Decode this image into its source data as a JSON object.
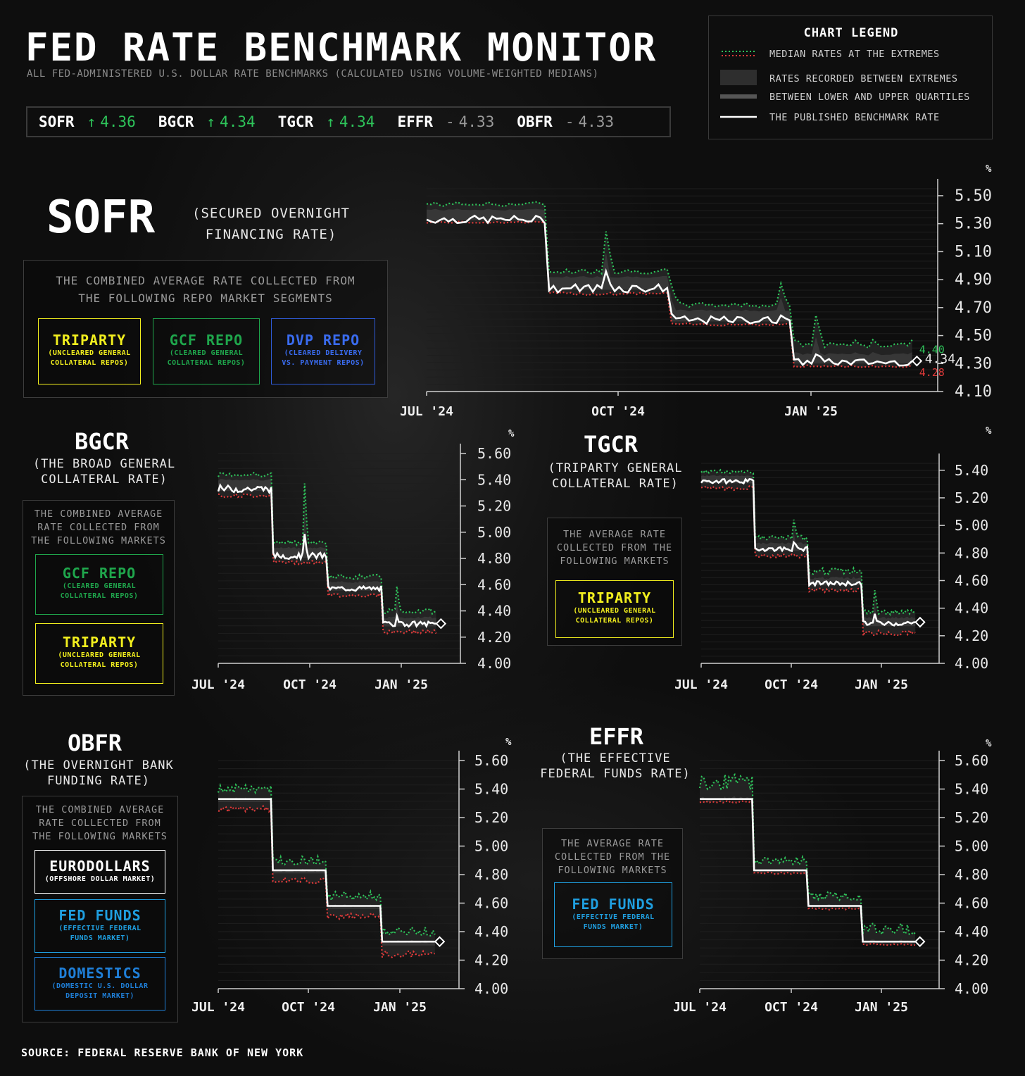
{
  "header": {
    "title": "FED RATE BENCHMARK MONITOR",
    "subtitle": "ALL FED-ADMINISTERED U.S. DOLLAR RATE BENCHMARKS (CALCULATED USING VOLUME-WEIGHTED MEDIANS)"
  },
  "ticker": [
    {
      "name": "SOFR",
      "arrow": "↑",
      "value": "4.36",
      "dir": "up"
    },
    {
      "name": "BGCR",
      "arrow": "↑",
      "value": "4.34",
      "dir": "up"
    },
    {
      "name": "TGCR",
      "arrow": "↑",
      "value": "4.34",
      "dir": "up"
    },
    {
      "name": "EFFR",
      "arrow": "-",
      "value": "4.33",
      "dir": "flat"
    },
    {
      "name": "OBFR",
      "arrow": "-",
      "value": "4.33",
      "dir": "flat"
    }
  ],
  "legend": {
    "title": "CHART LEGEND",
    "items": [
      "MEDIAN RATES AT THE EXTREMES",
      "RATES RECORDED BETWEEN EXTREMES",
      "BETWEEN LOWER AND UPPER QUARTILES",
      "THE PUBLISHED BENCHMARK RATE"
    ]
  },
  "colors": {
    "green": "#2ec45a",
    "red": "#e03a3a",
    "white": "#ffffff",
    "triparty": "#f2ef1e",
    "gcf": "#1fa64c",
    "dvp": "#2f5bd8",
    "fedfunds": "#1f9fe0",
    "domestics": "#1f7fd8"
  },
  "sections": {
    "sofr": {
      "name": "SOFR",
      "full": [
        "(SECURED OVERNIGHT",
        "FINANCING RATE)"
      ],
      "desc": [
        "THE COMBINED AVERAGE RATE COLLECTED FROM",
        "THE FOLLOWING REPO MARKET SEGMENTS"
      ],
      "tags": [
        {
          "name": "TRIPARTY",
          "sub": [
            "(UNCLEARED GENERAL",
            "COLLATERAL REPOS)"
          ]
        },
        {
          "name": "GCF REPO",
          "sub": [
            "(CLEARED GENERAL",
            "COLLATERAL REPOS)"
          ]
        },
        {
          "name": "DVP REPO",
          "sub": [
            "(CLEARED DELIVERY",
            "VS. PAYMENT REPOS)"
          ]
        }
      ]
    },
    "bgcr": {
      "name": "BGCR",
      "full": [
        "(THE BROAD GENERAL",
        "COLLATERAL RATE)"
      ],
      "desc": [
        "THE COMBINED AVERAGE",
        "RATE COLLECTED FROM",
        "THE FOLLOWING MARKETS"
      ],
      "tags": [
        {
          "name": "GCF REPO",
          "sub": [
            "(CLEARED GENERAL",
            "COLLATERAL REPOS)"
          ]
        },
        {
          "name": "TRIPARTY",
          "sub": [
            "(UNCLEARED GENERAL",
            "COLLATERAL REPOS)"
          ]
        }
      ]
    },
    "tgcr": {
      "name": "TGCR",
      "full": [
        "(TRIPARTY GENERAL",
        "COLLATERAL RATE)"
      ],
      "desc": [
        "THE AVERAGE RATE",
        "COLLECTED FROM THE",
        "FOLLOWING MARKETS"
      ],
      "tags": [
        {
          "name": "TRIPARTY",
          "sub": [
            "(UNCLEARED GENERAL",
            "COLLATERAL REPOS)"
          ]
        }
      ]
    },
    "obfr": {
      "name": "OBFR",
      "full": [
        "(THE OVERNIGHT BANK",
        "FUNDING RATE)"
      ],
      "desc": [
        "THE COMBINED AVERAGE",
        "RATE COLLECTED FROM",
        "THE FOLLOWING MARKETS"
      ],
      "tags": [
        {
          "name": "EURODOLLARS",
          "sub": [
            "(OFFSHORE DOLLAR MARKET)"
          ]
        },
        {
          "name": "FED FUNDS",
          "sub": [
            "(EFFECTIVE FEDERAL",
            "FUNDS MARKET)"
          ]
        },
        {
          "name": "DOMESTICS",
          "sub": [
            "(DOMESTIC U.S. DOLLAR",
            "DEPOSIT MARKET)"
          ]
        }
      ]
    },
    "effr": {
      "name": "EFFR",
      "full": [
        "(THE EFFECTIVE",
        "FEDERAL FUNDS RATE)"
      ],
      "desc": [
        "THE AVERAGE RATE",
        "COLLECTED FROM THE",
        "FOLLOWING MARKETS"
      ],
      "tags": [
        {
          "name": "FED FUNDS",
          "sub": [
            "(EFFECTIVE FEDERAL",
            "FUNDS MARKET)"
          ]
        }
      ]
    }
  },
  "source": "SOURCE: FEDERAL RESERVE BANK OF NEW YORK",
  "chart_data": [
    {
      "id": "sofr",
      "type": "line",
      "unit": "%",
      "xlabels": [
        "JUL '24",
        "OCT '24",
        "JAN '25"
      ],
      "yticks": [
        "5.50",
        "5.30",
        "5.10",
        "4.90",
        "4.70",
        "4.50",
        "4.30",
        "4.10"
      ],
      "ylim": [
        4.1,
        5.55
      ],
      "annotations": {
        "high": "4.40",
        "last": "4.34",
        "low": "4.28"
      },
      "segments": [
        [
          5.33,
          5.4,
          5.31,
          5.44
        ],
        [
          4.84,
          4.92,
          4.8,
          4.96
        ],
        [
          4.61,
          4.68,
          4.58,
          4.72
        ],
        [
          4.31,
          4.37,
          4.28,
          4.44
        ]
      ],
      "spikes": [
        [
          0.37,
          0.3
        ],
        [
          0.5,
          0.12
        ],
        [
          0.73,
          0.15
        ],
        [
          0.8,
          0.18
        ]
      ]
    },
    {
      "id": "bgcr",
      "type": "line",
      "unit": "%",
      "xlabels": [
        "JUL '24",
        "OCT '24",
        "JAN '25"
      ],
      "yticks": [
        "5.60",
        "5.40",
        "5.20",
        "5.00",
        "4.80",
        "4.60",
        "4.40",
        "4.20",
        "4.00"
      ],
      "ylim": [
        4.0,
        5.6
      ],
      "segments": [
        [
          5.33,
          5.4,
          5.28,
          5.44
        ],
        [
          4.82,
          4.88,
          4.77,
          4.92
        ],
        [
          4.57,
          4.62,
          4.52,
          4.66
        ],
        [
          4.3,
          4.35,
          4.24,
          4.4
        ]
      ],
      "spikes": [
        [
          0.4,
          0.45
        ],
        [
          0.82,
          0.2
        ]
      ]
    },
    {
      "id": "tgcr",
      "type": "line",
      "unit": "%",
      "xlabels": [
        "JUL '24",
        "OCT '24",
        "JAN '25"
      ],
      "yticks": [
        "5.40",
        "5.20",
        "5.00",
        "4.80",
        "4.60",
        "4.40",
        "4.20",
        "4.00"
      ],
      "ylim": [
        4.0,
        5.45
      ],
      "segments": [
        [
          5.32,
          5.36,
          5.27,
          5.39
        ],
        [
          4.83,
          4.87,
          4.78,
          4.91
        ],
        [
          4.58,
          4.62,
          4.53,
          4.67
        ],
        [
          4.29,
          4.33,
          4.22,
          4.37
        ]
      ],
      "spikes": [
        [
          0.43,
          0.12
        ],
        [
          0.81,
          0.15
        ]
      ]
    },
    {
      "id": "obfr",
      "type": "line",
      "unit": "%",
      "xlabels": [
        "JUL '24",
        "OCT '24",
        "JAN '25"
      ],
      "yticks": [
        "5.60",
        "5.40",
        "5.20",
        "5.00",
        "4.80",
        "4.60",
        "4.40",
        "4.20",
        "4.00"
      ],
      "ylim": [
        4.0,
        5.6
      ],
      "segments": [
        [
          5.33,
          5.33,
          5.26,
          5.4
        ],
        [
          4.83,
          4.83,
          4.76,
          4.9
        ],
        [
          4.58,
          4.58,
          4.51,
          4.65
        ],
        [
          4.33,
          4.33,
          4.24,
          4.4
        ]
      ],
      "spikes": []
    },
    {
      "id": "effr",
      "type": "line",
      "unit": "%",
      "xlabels": [
        "JUL '24",
        "OCT '24",
        "JAN '25"
      ],
      "yticks": [
        "5.60",
        "5.40",
        "5.20",
        "5.00",
        "4.80",
        "4.60",
        "4.40",
        "4.20",
        "4.00"
      ],
      "ylim": [
        4.0,
        5.6
      ],
      "segments": [
        [
          5.33,
          5.33,
          5.31,
          5.45
        ],
        [
          4.83,
          4.83,
          4.81,
          4.9
        ],
        [
          4.58,
          4.58,
          4.56,
          4.65
        ],
        [
          4.33,
          4.33,
          4.31,
          4.42
        ]
      ],
      "spikes": []
    }
  ]
}
